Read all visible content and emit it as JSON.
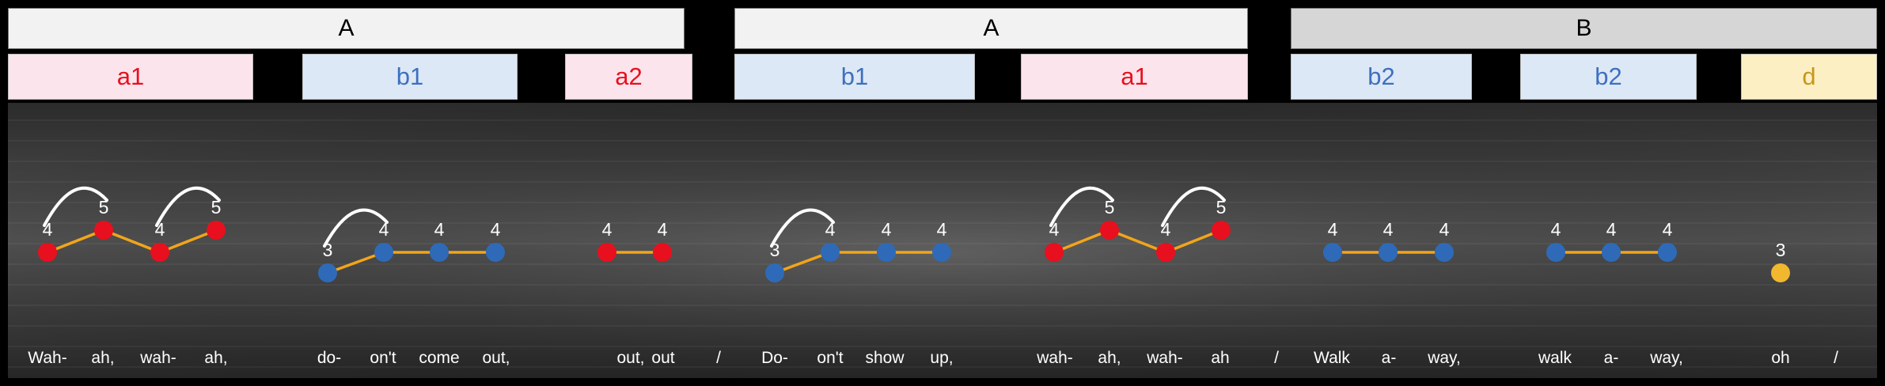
{
  "colors": {
    "red": "#e8101e",
    "blue": "#2f6ab8",
    "yellow": "#f0b72f",
    "line": "#f2a51a",
    "sec_light": "#f2f2f2",
    "sec_dark": "#d6d6d6",
    "sub_a_bg": "#fce4ec",
    "sub_a_text": "#e8101e",
    "sub_b_bg": "#dce8f6",
    "sub_b_text": "#3f6fbf",
    "sub_d_bg": "#fdefc4",
    "sub_d_text": "#c9961a"
  },
  "sections": [
    {
      "label": "A",
      "style": "light"
    },
    {
      "label": "A",
      "style": "light"
    },
    {
      "label": "B",
      "style": "dark"
    }
  ],
  "subsections": [
    {
      "label": "a1",
      "kind": "a"
    },
    {
      "label": "b1",
      "kind": "b"
    },
    {
      "label": "a2",
      "kind": "a"
    },
    {
      "label": "b1",
      "kind": "b"
    },
    {
      "label": "a1",
      "kind": "a"
    },
    {
      "label": "b2",
      "kind": "b"
    },
    {
      "label": "b2",
      "kind": "b"
    },
    {
      "label": "d",
      "kind": "d"
    }
  ],
  "chart_data": {
    "type": "scatter",
    "description_units": "scale degree",
    "groups": [
      {
        "color": "red",
        "notes": [
          4,
          5,
          4,
          5
        ],
        "lyrics": [
          "Wah-",
          "ah,",
          "wah-",
          "ah,"
        ],
        "slurs": [
          [
            0,
            1
          ],
          [
            2,
            3
          ]
        ]
      },
      {
        "color": "blue",
        "notes": [
          3,
          4,
          4,
          4
        ],
        "lyrics": [
          "do-",
          "on't",
          "come",
          "out,"
        ],
        "slurs": [
          [
            0,
            1
          ]
        ]
      },
      {
        "color": "red",
        "notes": [
          4,
          4
        ],
        "lyrics": [
          "out,",
          "out"
        ],
        "slurs": []
      },
      {
        "color": "blue",
        "notes": [
          3,
          4,
          4,
          4
        ],
        "lyrics": [
          "Do-",
          "on't",
          "show",
          "up,"
        ],
        "slurs": [
          [
            0,
            1
          ]
        ]
      },
      {
        "color": "red",
        "notes": [
          4,
          5,
          4,
          5
        ],
        "lyrics": [
          "wah-",
          "ah,",
          "wah-",
          "ah"
        ],
        "slurs": [
          [
            0,
            1
          ],
          [
            2,
            3
          ]
        ]
      },
      {
        "color": "blue",
        "notes": [
          4,
          4,
          4
        ],
        "lyrics": [
          "Walk",
          "a-",
          "way,"
        ],
        "slurs": []
      },
      {
        "color": "blue",
        "notes": [
          4,
          4,
          4
        ],
        "lyrics": [
          "walk",
          "a-",
          "way,"
        ],
        "slurs": []
      },
      {
        "color": "yellow",
        "notes": [
          3
        ],
        "lyrics": [
          "oh"
        ],
        "slurs": []
      }
    ],
    "separators": [
      "/",
      "/",
      "/"
    ]
  }
}
